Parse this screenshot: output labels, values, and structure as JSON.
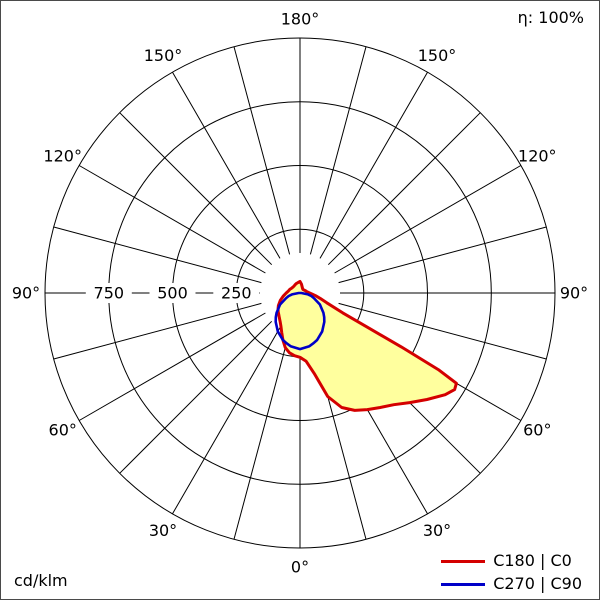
{
  "page": {
    "eta": "η: 100%",
    "units": "cd/klm"
  },
  "legend": {
    "items": [
      {
        "label": "C180 | C0",
        "color": "#d40000"
      },
      {
        "label": "C270 | C90",
        "color": "#0000c8"
      }
    ]
  },
  "chart_data": {
    "type": "polar",
    "subtype": "luminous-intensity-distribution",
    "title": "",
    "units": "cd/klm",
    "efficiency": "η: 100%",
    "center": [
      300,
      293
    ],
    "radial_axis": {
      "max": 1000,
      "ticks": [
        250,
        500,
        750
      ],
      "tick_labels": [
        "250",
        "500",
        "750"
      ],
      "outer_radius_px": 255
    },
    "inner_clear_radius_px": 40,
    "angle_label_radius_px": 274,
    "angle_grid_step_deg": 15,
    "angle_label_step_deg": 30,
    "angle_labels": [
      "0°",
      "30°",
      "60°",
      "90°",
      "120°",
      "150°",
      "180°"
    ],
    "grid_on": true,
    "legend_position": "bottom-right",
    "series": [
      {
        "name": "C180 | C0",
        "data_name": "series-c180-c0",
        "color": "#d40000",
        "fill": "#ffff9e",
        "width": 3,
        "points": [
          [
            -180,
            45
          ],
          [
            -170,
            42
          ],
          [
            -160,
            40
          ],
          [
            -150,
            38
          ],
          [
            -140,
            36
          ],
          [
            -130,
            36
          ],
          [
            -120,
            38
          ],
          [
            -110,
            42
          ],
          [
            -100,
            46
          ],
          [
            -90,
            54
          ],
          [
            -80,
            66
          ],
          [
            -70,
            82
          ],
          [
            -60,
            98
          ],
          [
            -55,
            105
          ],
          [
            -50,
            112
          ],
          [
            -45,
            118
          ],
          [
            -40,
            126
          ],
          [
            -35,
            136
          ],
          [
            -30,
            150
          ],
          [
            -25,
            170
          ],
          [
            -20,
            196
          ],
          [
            -15,
            222
          ],
          [
            -10,
            238
          ],
          [
            -5,
            247
          ],
          [
            0,
            252
          ],
          [
            5,
            268
          ],
          [
            10,
            320
          ],
          [
            15,
            420
          ],
          [
            20,
            478
          ],
          [
            25,
            508
          ],
          [
            30,
            528
          ],
          [
            35,
            548
          ],
          [
            40,
            572
          ],
          [
            45,
            608
          ],
          [
            50,
            650
          ],
          [
            55,
            695
          ],
          [
            58,
            715
          ],
          [
            60,
            708
          ],
          [
            61,
            620
          ],
          [
            62,
            450
          ],
          [
            63,
            300
          ],
          [
            65,
            185
          ],
          [
            70,
            112
          ],
          [
            75,
            82
          ],
          [
            80,
            62
          ],
          [
            85,
            48
          ],
          [
            90,
            38
          ],
          [
            100,
            28
          ],
          [
            110,
            24
          ],
          [
            120,
            21
          ],
          [
            130,
            19
          ],
          [
            140,
            18
          ],
          [
            150,
            20
          ],
          [
            160,
            25
          ],
          [
            170,
            35
          ],
          [
            180,
            45
          ]
        ]
      },
      {
        "name": "C270 | C90",
        "data_name": "series-c270-c90",
        "color": "#0000c8",
        "fill": "none",
        "width": 2.6,
        "points": [
          [
            -90,
            5
          ],
          [
            -80,
            32
          ],
          [
            -75,
            46
          ],
          [
            -70,
            58
          ],
          [
            -60,
            90
          ],
          [
            -50,
            120
          ],
          [
            -45,
            134
          ],
          [
            -40,
            148
          ],
          [
            -30,
            174
          ],
          [
            -20,
            196
          ],
          [
            -15,
            204
          ],
          [
            -10,
            212
          ],
          [
            0,
            220
          ],
          [
            10,
            212
          ],
          [
            15,
            204
          ],
          [
            20,
            196
          ],
          [
            30,
            174
          ],
          [
            40,
            148
          ],
          [
            45,
            134
          ],
          [
            50,
            120
          ],
          [
            60,
            90
          ],
          [
            70,
            58
          ],
          [
            75,
            46
          ],
          [
            80,
            32
          ],
          [
            90,
            5
          ]
        ]
      }
    ]
  }
}
